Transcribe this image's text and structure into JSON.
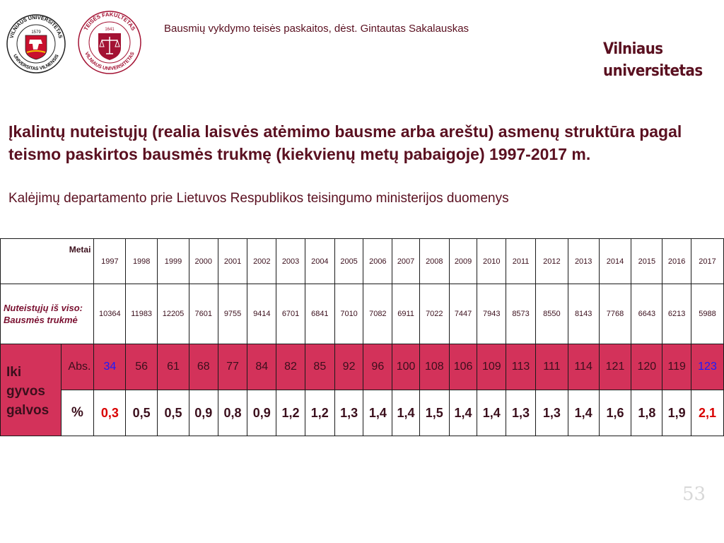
{
  "header": {
    "lecture_line": "Bausmių vykdymo teisės paskaitos, dėst. Gintautas Sakalauskas",
    "brand_line1": "Vilniaus",
    "brand_line2": "universitetas",
    "logo_vu_top": "VILNIAUS UNIVERSITETAS",
    "logo_vu_bottom": "UNIVERSITAS VILNENSIS",
    "logo_vu_year": "1579",
    "logo_tf_top": "TEISĖS FAKULTETAS",
    "logo_tf_bottom": "VILNIAUS UNIVERSITETAS",
    "logo_tf_year": "1641"
  },
  "slide": {
    "title": "Įkalintų nuteistųjų (realia laisvės atėmimo bausme arba areštu) asmenų struktūra pagal teismo paskirtos bausmės trukmę (kiekvienų metų pabaigoje) 1997-2017 m.",
    "subtitle": "Kalėjimų departamento prie Lietuvos Respublikos teisingumo ministerijos duomenys",
    "page_number": "53"
  },
  "table": {
    "metai_label": "Metai",
    "total_label": "Nuteistųjų iš viso: Bausmės trukmė",
    "years": [
      "1997",
      "1998",
      "1999",
      "2000",
      "2001",
      "2002",
      "2003",
      "2004",
      "2005",
      "2006",
      "2007",
      "2008",
      "2009",
      "2010",
      "2011",
      "2012",
      "2013",
      "2014",
      "2015",
      "2016",
      "2017"
    ],
    "totals": [
      "10364",
      "11983",
      "12205",
      "7601",
      "9755",
      "9414",
      "6701",
      "6841",
      "7010",
      "7082",
      "6911",
      "7022",
      "7447",
      "7943",
      "8573",
      "8550",
      "8143",
      "7768",
      "6643",
      "6213",
      "5988"
    ],
    "group_label": "Iki gyvos galvos",
    "abs_label": "Abs.",
    "abs_values": [
      "34",
      "56",
      "61",
      "68",
      "77",
      "84",
      "82",
      "85",
      "92",
      "96",
      "100",
      "108",
      "106",
      "109",
      "113",
      "111",
      "114",
      "121",
      "120",
      "119",
      "123"
    ],
    "pct_label": "%",
    "pct_values": [
      "0,3",
      "0,5",
      "0,5",
      "0,9",
      "0,8",
      "0,9",
      "1,2",
      "1,2",
      "1,3",
      "1,4",
      "1,4",
      "1,5",
      "1,4",
      "1,4",
      "1,3",
      "1,3",
      "1,4",
      "1,6",
      "1,8",
      "1,9",
      "2,1"
    ],
    "colors": {
      "abs_row_bg": "#d3325a",
      "highlight_blue": "#1a1aff",
      "highlight_red": "#d90000",
      "title_color": "#5a1020"
    }
  }
}
